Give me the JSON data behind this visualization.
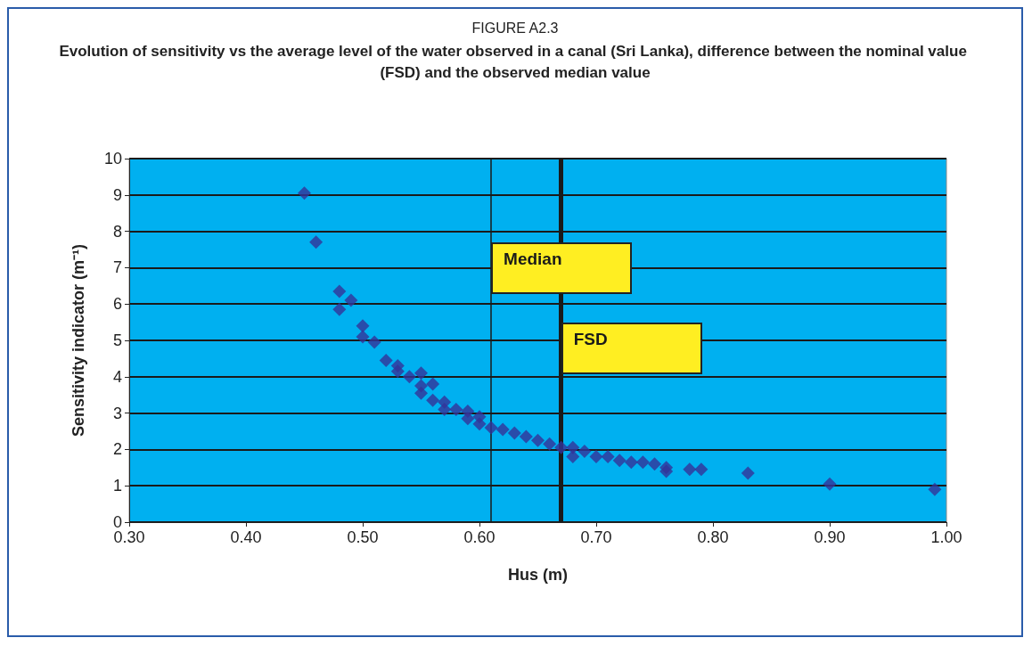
{
  "chart_data": {
    "type": "scatter",
    "title": "FIGURE A2.3",
    "subtitle": "Evolution of sensitivity vs the average level of the water observed in a canal (Sri Lanka), difference between the nominal value (FSD) and the observed median value",
    "xlabel": "Hus (m)",
    "ylabel": "Sensitivity indicator (m⁻¹)",
    "x": [
      0.45,
      0.46,
      0.48,
      0.48,
      0.49,
      0.5,
      0.5,
      0.51,
      0.52,
      0.53,
      0.53,
      0.54,
      0.55,
      0.55,
      0.55,
      0.56,
      0.56,
      0.57,
      0.57,
      0.58,
      0.59,
      0.59,
      0.6,
      0.6,
      0.61,
      0.62,
      0.63,
      0.64,
      0.65,
      0.66,
      0.67,
      0.68,
      0.68,
      0.69,
      0.7,
      0.71,
      0.72,
      0.73,
      0.74,
      0.75,
      0.76,
      0.76,
      0.78,
      0.79,
      0.83,
      0.9,
      0.99
    ],
    "values": [
      9.05,
      7.7,
      6.35,
      5.85,
      6.1,
      5.4,
      5.1,
      4.95,
      4.45,
      4.3,
      4.15,
      4.0,
      4.1,
      3.75,
      3.55,
      3.8,
      3.35,
      3.3,
      3.1,
      3.1,
      3.05,
      2.85,
      2.9,
      2.7,
      2.6,
      2.55,
      2.45,
      2.35,
      2.25,
      2.15,
      2.05,
      2.05,
      1.8,
      1.95,
      1.8,
      1.8,
      1.7,
      1.65,
      1.65,
      1.6,
      1.5,
      1.4,
      1.45,
      1.45,
      1.35,
      1.05,
      0.9
    ],
    "color": "#333399",
    "marker": "diamond",
    "xlim": [
      0.3,
      1.0
    ],
    "xticks": [
      {
        "value": 0.3,
        "label": "0.30"
      },
      {
        "value": 0.4,
        "label": "0.40"
      },
      {
        "value": 0.5,
        "label": "0.50"
      },
      {
        "value": 0.6,
        "label": "0.60"
      },
      {
        "value": 0.7,
        "label": "0.70"
      },
      {
        "value": 0.8,
        "label": "0.80"
      },
      {
        "value": 0.9,
        "label": "0.90"
      },
      {
        "value": 1.0,
        "label": "1.00"
      }
    ],
    "ylim": [
      0,
      10
    ],
    "yticks": [
      0,
      1,
      2,
      3,
      4,
      5,
      6,
      7,
      8,
      9,
      10
    ],
    "grid": "y",
    "ref_lines": [
      {
        "axis": "x",
        "value": 0.61,
        "label": "Median",
        "color": "#1a1a1a"
      },
      {
        "axis": "x",
        "value": 0.67,
        "label": "FSD",
        "color": "#1a1a1a"
      }
    ]
  }
}
